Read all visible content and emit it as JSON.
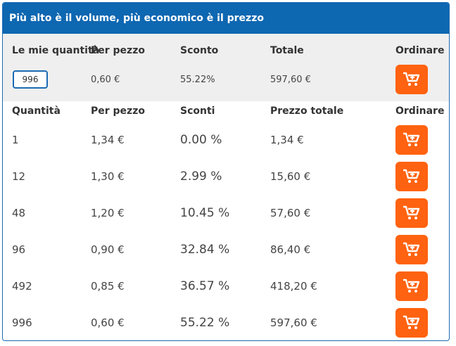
{
  "header": {
    "title": "Più alto è il volume, più economico è il prezzo"
  },
  "my_quantity": {
    "headers": {
      "quantity": "Le mie quantità",
      "per_piece": "Per pezzo",
      "discount": "Sconto",
      "total": "Totale",
      "order": "Ordinare"
    },
    "quantity_value": "996",
    "per_piece": "0,60 €",
    "discount": "55.22%",
    "total": "597,60 €"
  },
  "table": {
    "headers": {
      "quantity": "Quantità",
      "per_piece": "Per pezzo",
      "discount": "Sconti",
      "total": "Prezzo totale",
      "order": "Ordinare"
    },
    "rows": [
      {
        "quantity": "1",
        "per_piece": "1,34 €",
        "discount": "0.00 %",
        "total": "1,34 €"
      },
      {
        "quantity": "12",
        "per_piece": "1,30 €",
        "discount": "2.99 %",
        "total": "15,60 €"
      },
      {
        "quantity": "48",
        "per_piece": "1,20 €",
        "discount": "10.45 %",
        "total": "57,60 €"
      },
      {
        "quantity": "96",
        "per_piece": "0,90 €",
        "discount": "32.84 %",
        "total": "86,40 €"
      },
      {
        "quantity": "492",
        "per_piece": "0,85 €",
        "discount": "36.57 %",
        "total": "418,20 €"
      },
      {
        "quantity": "996",
        "per_piece": "0,60 €",
        "discount": "55.22 %",
        "total": "597,60 €"
      }
    ]
  },
  "colors": {
    "header_bg": "#0e67b1",
    "button_bg": "#ff6210",
    "highlight_bg": "#efefef"
  },
  "icons": {
    "order_button": "add-to-cart-icon"
  }
}
